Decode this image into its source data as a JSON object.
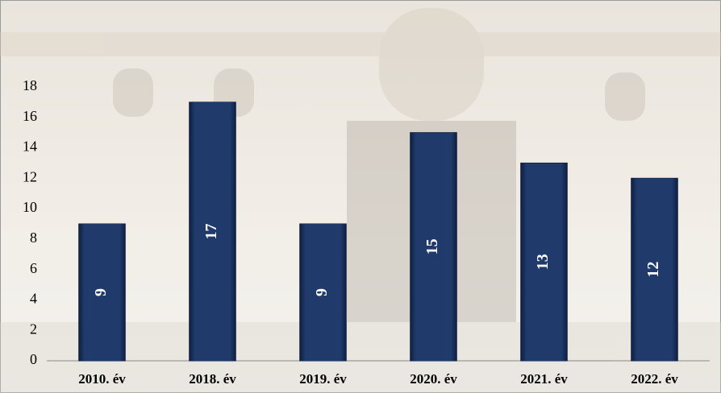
{
  "chart_data": {
    "type": "bar",
    "categories": [
      "2010. év",
      "2018. év",
      "2019. év",
      "2020. év",
      "2021. év",
      "2022. év"
    ],
    "values": [
      9,
      17,
      9,
      15,
      13,
      12
    ],
    "color": "#1f3a6b",
    "ylim": [
      0,
      18
    ],
    "yticks": [
      0,
      2,
      4,
      6,
      8,
      10,
      12,
      14,
      16,
      18
    ],
    "grid": false
  }
}
